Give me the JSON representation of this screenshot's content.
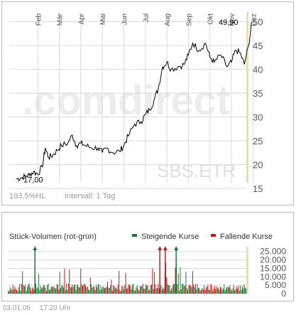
{
  "chart_data": [
    {
      "type": "line",
      "months": [
        "Feb",
        "Mär",
        "Apr",
        "Mai",
        "Jun",
        "Jul",
        "Aug",
        "Sep",
        "Okt",
        "Nov",
        "Dez"
      ],
      "ylim": [
        15,
        52
      ],
      "yticks": [
        15,
        20,
        25,
        30,
        35,
        40,
        45,
        50
      ],
      "start_label": "17,00",
      "end_label": "49,90",
      "watermark": ".comdirect",
      "ticker": "SBS.ETR",
      "percent_label": "193,5%HL",
      "interval_label": "Intervall: 1 Tag",
      "x": [
        0,
        0.2,
        0.4,
        0.6,
        0.8,
        1.0,
        1.2,
        1.35,
        1.5,
        1.7,
        1.9,
        2.1,
        2.4,
        2.6,
        2.8,
        3.0,
        3.2,
        3.5,
        3.8,
        4.0,
        4.2,
        4.5,
        4.8,
        5.0,
        5.2,
        5.5,
        5.8,
        6.0,
        6.2,
        6.4,
        6.6,
        6.8,
        7.0,
        7.2,
        7.5,
        7.8,
        8.0,
        8.2,
        8.5,
        8.8,
        9.0,
        9.2,
        9.5,
        9.8,
        10.0,
        10.2,
        10.4,
        10.6,
        10.8,
        10.95
      ],
      "values": [
        17.0,
        17.2,
        17.5,
        17.8,
        18.5,
        18.0,
        19.5,
        23.5,
        21.5,
        22.0,
        23.0,
        24.0,
        24.5,
        26.2,
        24.0,
        24.5,
        24.0,
        23.5,
        23.5,
        22.5,
        23.5,
        22.5,
        22.8,
        24.0,
        26.0,
        28.5,
        29.0,
        30.5,
        31.5,
        33.5,
        36.0,
        40.5,
        41.5,
        40.0,
        40.5,
        41.0,
        43.0,
        45.5,
        44.0,
        45.5,
        42.5,
        41.5,
        43.0,
        40.5,
        41.5,
        44.0,
        43.5,
        41.0,
        45.0,
        49.9
      ]
    },
    {
      "type": "bar",
      "title": "Stück-Volumen (rot-grün)",
      "legend": [
        {
          "name": "Steigende Kurse",
          "color": "#1a7a3a"
        },
        {
          "name": "Fallende Kurse",
          "color": "#c41818"
        }
      ],
      "ylim": [
        0,
        27000
      ],
      "yticks": [
        {
          "value": 0,
          "label": "0"
        },
        {
          "value": 5000,
          "label": "5.000"
        },
        {
          "value": 10000,
          "label": "10.000"
        },
        {
          "value": 15000,
          "label": "15.000"
        },
        {
          "value": 20000,
          "label": "20.000"
        },
        {
          "value": 25000,
          "label": "25.000"
        }
      ],
      "overflow_marks": [
        {
          "x": 1.25,
          "color": "#1a7a3a"
        },
        {
          "x": 7.0,
          "color": "#c41818"
        },
        {
          "x": 7.25,
          "color": "#c41818"
        },
        {
          "x": 7.75,
          "color": "#1a7a3a"
        }
      ]
    }
  ],
  "footer": {
    "date": "03.01.06",
    "time": "17:20 Uhr"
  },
  "colors": {
    "line": "#000000",
    "grid": "#d9d9d9",
    "axis_band": "#f7dca0",
    "watermark_dot": "#f6d7a4",
    "watermark_text": "#ececec"
  }
}
